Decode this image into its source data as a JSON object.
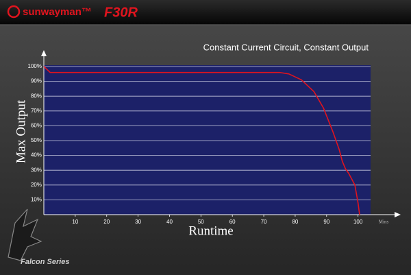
{
  "brand": {
    "logo": "sunwayman™",
    "model": "F30R",
    "series": "Falcon Series"
  },
  "chart_data": {
    "type": "line",
    "title": "Constant Current Circuit, Constant Output",
    "xlabel": "Runtime",
    "ylabel": "Max Output",
    "x_unit": "Mins",
    "x": [
      0,
      2,
      10,
      20,
      30,
      40,
      50,
      60,
      70,
      75,
      78,
      82,
      86,
      89,
      92,
      94,
      95,
      96,
      97,
      99,
      100,
      100.5
    ],
    "series": [
      {
        "name": "Max Output",
        "color": "#e0141e",
        "values": [
          100,
          96,
          96,
          96,
          96,
          96,
          96,
          96,
          96,
          96,
          95,
          91,
          83,
          72,
          56,
          44,
          36,
          31,
          28,
          20,
          8,
          0
        ]
      }
    ],
    "xlim": [
      0,
      104
    ],
    "ylim": [
      0,
      100
    ],
    "xticks": [
      10,
      20,
      30,
      40,
      50,
      60,
      70,
      80,
      90,
      100
    ],
    "yticks": [
      {
        "value": 10,
        "label": "10%"
      },
      {
        "value": 20,
        "label": "20%"
      },
      {
        "value": 30,
        "label": "30%"
      },
      {
        "value": 40,
        "label": "40%"
      },
      {
        "value": 50,
        "label": "50%"
      },
      {
        "value": 60,
        "label": "60%"
      },
      {
        "value": 70,
        "label": "70%"
      },
      {
        "value": 80,
        "label": "80%"
      },
      {
        "value": 90,
        "label": "90%"
      },
      {
        "value": 100,
        "label": "100%"
      }
    ],
    "grid": true,
    "plot_background": "#1c2168"
  }
}
